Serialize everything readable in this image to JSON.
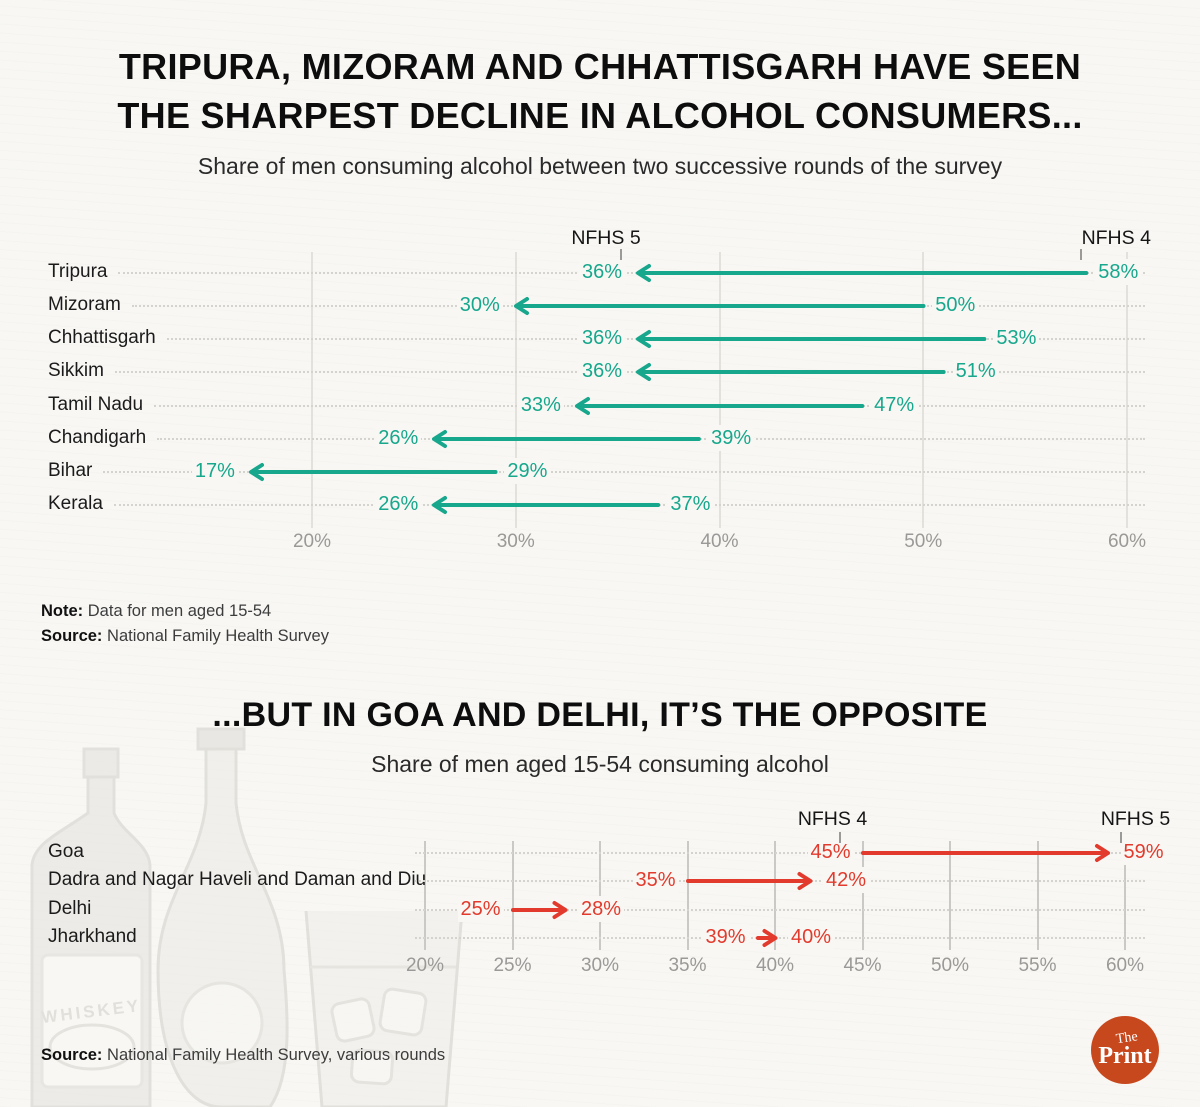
{
  "page": {
    "bg": "#f8f7f4"
  },
  "section1": {
    "title1": "TRIPURA, MIZORAM AND CHHATTISGARH HAVE SEEN",
    "title2": "THE SHARPEST DECLINE IN ALCOHOL CONSUMERS...",
    "subtitle": "Share of men consuming alcohol between two successive rounds of the survey",
    "note_label": "Note:",
    "note_text": "Data for men aged 15-54",
    "source_label": "Source:",
    "source_text": "National Family Health Survey"
  },
  "section2": {
    "title": "...BUT IN GOA AND DELHI, IT’S THE OPPOSITE",
    "subtitle": "Share of men aged 15-54 consuming alcohol",
    "source_label": "Source:",
    "source_text": "National Family Health Survey, various rounds"
  },
  "logo": {
    "top": "The",
    "bottom": "Print",
    "bg": "#c8481e"
  },
  "watermark": {
    "label_text": "WHISKEY"
  },
  "chart_data": [
    {
      "type": "scatter",
      "style": "arrow-dumbbell",
      "direction": "decrease",
      "unit": "%",
      "title": "Share of men consuming alcohol between two successive rounds of the survey",
      "categories": [
        "Tripura",
        "Mizoram",
        "Chhattisgarh",
        "Sikkim",
        "Tamil Nadu",
        "Chandigarh",
        "Bihar",
        "Kerala"
      ],
      "series": [
        {
          "name": "NFHS 4",
          "values": [
            58,
            50,
            53,
            51,
            47,
            39,
            29,
            37
          ]
        },
        {
          "name": "NFHS 5",
          "values": [
            36,
            30,
            36,
            36,
            33,
            26,
            17,
            26
          ]
        }
      ],
      "x_ticks": [
        20,
        30,
        40,
        50,
        60
      ],
      "xlim": [
        20,
        60
      ],
      "grid": "vertical",
      "arrow_color": "#17a78c",
      "legend_position": "inline-above-first-row"
    },
    {
      "type": "scatter",
      "style": "arrow-dumbbell",
      "direction": "increase",
      "unit": "%",
      "title": "Share of men aged 15-54 consuming alcohol",
      "categories": [
        "Goa",
        "Dadra and Nagar Haveli and Daman and Diu",
        "Delhi",
        "Jharkhand"
      ],
      "series": [
        {
          "name": "NFHS 4",
          "values": [
            45,
            35,
            25,
            39
          ]
        },
        {
          "name": "NFHS 5",
          "values": [
            59,
            42,
            28,
            40
          ]
        }
      ],
      "x_ticks": [
        20,
        25,
        30,
        35,
        40,
        45,
        50,
        55,
        60
      ],
      "xlim": [
        20,
        60
      ],
      "grid": "vertical",
      "arrow_color": "#e23a2c",
      "legend_position": "inline-above-first-row"
    }
  ]
}
